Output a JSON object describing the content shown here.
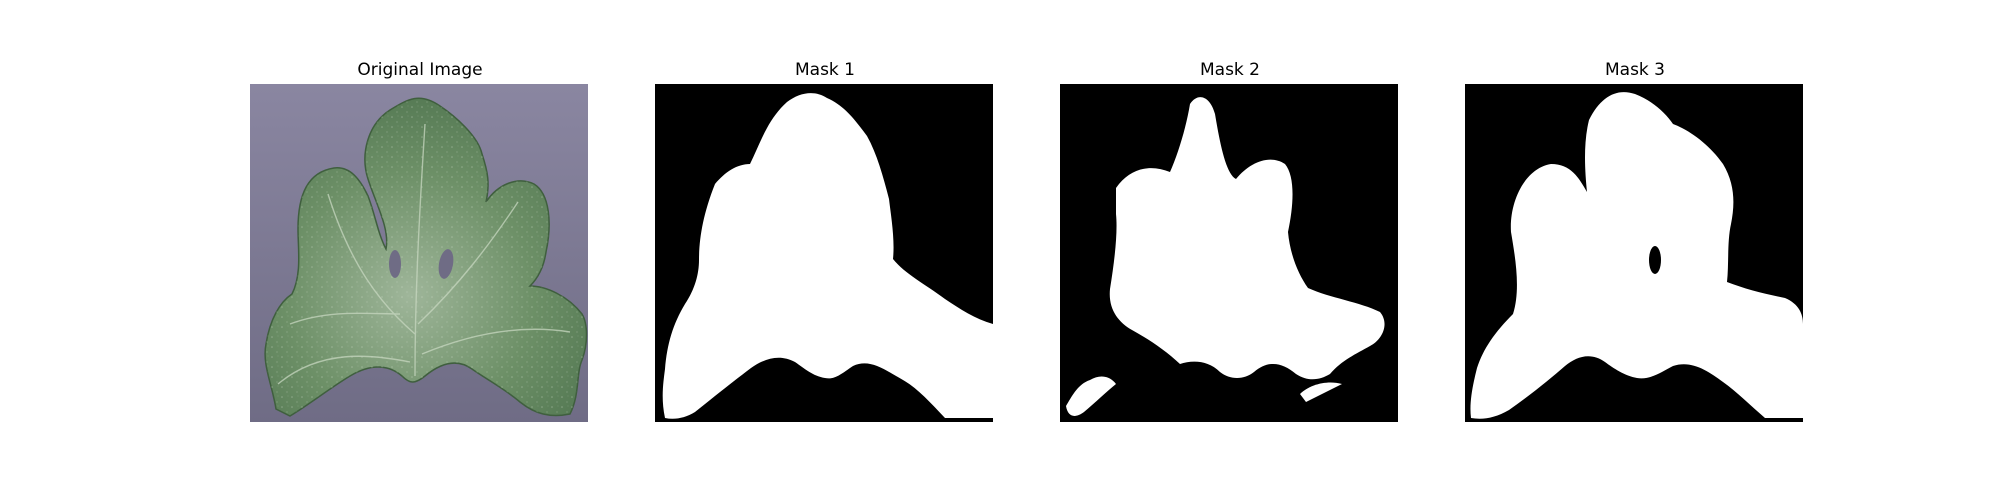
{
  "figure": {
    "panels": [
      {
        "title": "Original Image",
        "kind": "photo",
        "subject": "green leaf-icon"
      },
      {
        "title": "Mask 1",
        "kind": "mask"
      },
      {
        "title": "Mask 2",
        "kind": "mask"
      },
      {
        "title": "Mask 3",
        "kind": "mask"
      }
    ]
  },
  "colors": {
    "background": "#7d7a91",
    "leaf_dark": "#587d57",
    "leaf_light": "#9fb69a",
    "mask_fg": "#ffffff",
    "mask_bg": "#000000"
  }
}
